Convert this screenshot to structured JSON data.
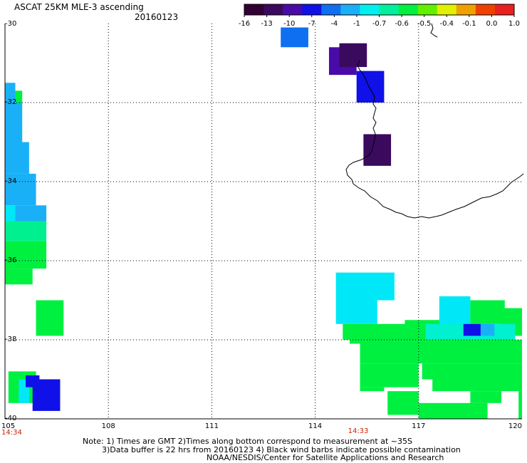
{
  "header": {
    "title": "ASCAT 25KM MLE-3 ascending",
    "date": "20160123"
  },
  "colorbar": {
    "labels": [
      "-16",
      "-13",
      "-10",
      "-7",
      "-4",
      "-1",
      "-0.7",
      "-0.6",
      "-0.5",
      "-0.4",
      "-0.1",
      "0.0",
      "1.0"
    ],
    "colors": [
      "#330033",
      "#3a0a5e",
      "#4a0aa8",
      "#1010e8",
      "#0e70f0",
      "#1ab0f8",
      "#00f0f0",
      "#00f0a0",
      "#00f040",
      "#60f000",
      "#e0f000",
      "#f0a000",
      "#f04000",
      "#e82020"
    ]
  },
  "map": {
    "lon_range": [
      105,
      120
    ],
    "lat_range": [
      -30,
      -40
    ],
    "lon_labels": [
      "105",
      "108",
      "111",
      "114",
      "117",
      "120"
    ],
    "lat_labels": [
      "-30",
      "-32",
      "-34",
      "-36",
      "-38",
      "-40"
    ],
    "time_labels": [
      "14:34",
      "14:33"
    ],
    "time_color": "#cc2200"
  },
  "notes": {
    "line1": "Note: 1) Times are GMT 2)Times along bottom correspond to measurement at ~35S",
    "line2": "3)Data buffer is 22 hrs from 20160123 4) Black wind barbs indicate possible contamination",
    "line3": "NOAA/NESDIS/Center for Satellite Applications and Research"
  }
}
